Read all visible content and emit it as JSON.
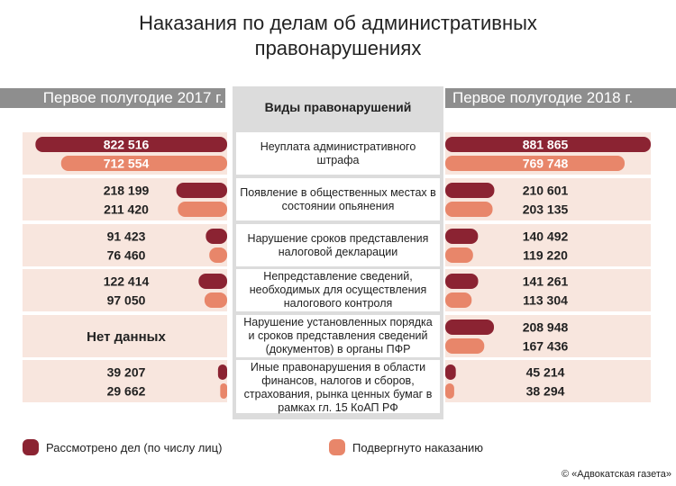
{
  "chart_data": {
    "type": "bar",
    "title": "Наказания по делам об административных правонарушениях",
    "categories_header": "Виды правонарушений",
    "categories": [
      "Неуплата административного штрафа",
      "Появление в общественных местах в состоянии опьянения",
      "Нарушение сроков представления налоговой декларации",
      "Непредставление сведений, необходимых для осуществления налогового контроля",
      "Нарушение установленных порядка и сроков представления сведений (документов) в органы ПФР",
      "Иные правонарушения в области финансов, налогов и сборов, страхования, рынка ценных бумаг в рамках гл. 15 КоАП РФ"
    ],
    "panels": [
      "Первое полугодие 2017 г.",
      "Первое полугодие 2018 г."
    ],
    "no_data_label": "Нет данных",
    "series": [
      {
        "name": "Рассмотрено дел (по числу лиц)",
        "color": "#8b2332",
        "panels": [
          {
            "values": [
              822516,
              218199,
              91423,
              122414,
              null,
              39207
            ],
            "value_labels": [
              "822 516",
              "218 199",
              "91 423",
              "122 414",
              null,
              "39 207"
            ]
          },
          {
            "values": [
              881865,
              210601,
              140492,
              141261,
              208948,
              45214
            ],
            "value_labels": [
              "881 865",
              "210 601",
              "140 492",
              "141 261",
              "208 948",
              "45 214"
            ]
          }
        ]
      },
      {
        "name": "Подвергнуто наказанию",
        "color": "#e8866a",
        "panels": [
          {
            "values": [
              712554,
              211420,
              76460,
              97050,
              null,
              29662
            ],
            "value_labels": [
              "712 554",
              "211 420",
              "76 460",
              "97 050",
              null,
              "29 662"
            ]
          },
          {
            "values": [
              769748,
              203135,
              119220,
              113304,
              167436,
              38294
            ],
            "value_labels": [
              "769 748",
              "203 135",
              "119 220",
              "113 304",
              "167 436",
              "38 294"
            ]
          }
        ]
      }
    ],
    "source": "© «Адвокатская газета»"
  }
}
